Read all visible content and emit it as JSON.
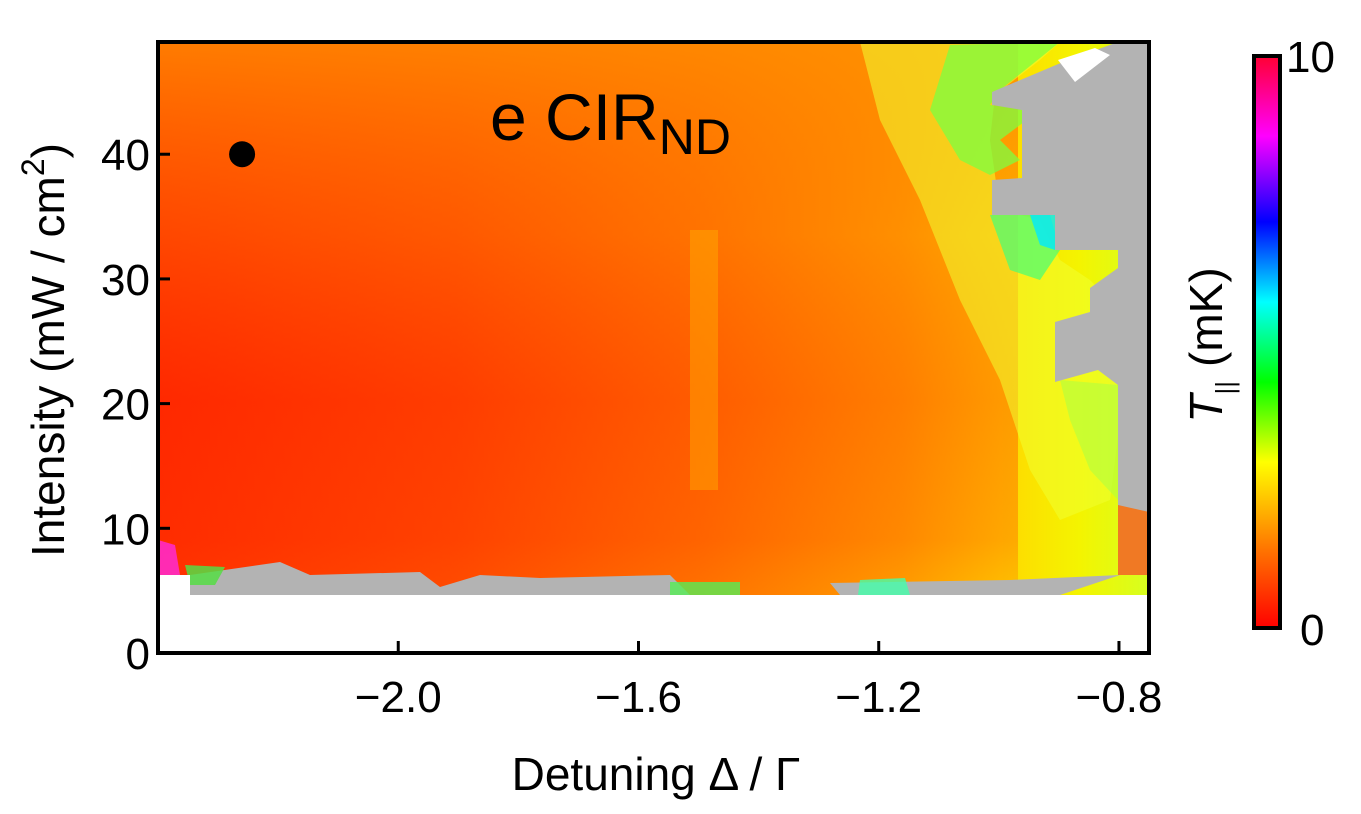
{
  "chart_data": {
    "type": "heatmap",
    "panel_label": {
      "prefix": "e CIR",
      "subscript": "ND"
    },
    "xlabel": "Detuning Δ / Γ",
    "ylabel": {
      "main": "Intensity (mW / cm",
      "superscript": "2",
      "close": ")"
    },
    "xlim": [
      -2.4,
      -0.75
    ],
    "ylim": [
      0,
      49
    ],
    "x_ticks": [
      -2.0,
      -1.6,
      -1.2,
      -0.8
    ],
    "x_tick_labels": [
      "−2.0",
      "−1.6",
      "−1.2",
      "−0.8"
    ],
    "y_ticks": [
      0,
      10,
      20,
      30,
      40
    ],
    "y_tick_labels": [
      "0",
      "10",
      "20",
      "30",
      "40"
    ],
    "marker": {
      "x": -2.26,
      "y": 40
    },
    "colorbar": {
      "label_symbol": "T",
      "label_subscript": "||",
      "label_unit": "(mK)",
      "min": 0,
      "max": 10,
      "min_label": "0",
      "max_label": "10",
      "colors": [
        "#ff0000",
        "#ff7700",
        "#ffff00",
        "#00ff00",
        "#00ffff",
        "#0000ff",
        "#ff00ff",
        "#ff0000"
      ]
    },
    "no_data_color": "#b3b3b3",
    "colorscale": "temperature 0–10 mK (red→orange→yellow→green→cyan→blue→magenta)",
    "description": "Color map of parallel temperature versus detuning and intensity; temperatures lowest (red, ~0–1 mK) at large negative detuning and low-moderate intensity, rising through orange/yellow to green/cyan near detuning −0.9; grey marks invalid data near −0.8 and along bottom edge near 5 mW/cm2; white below ~5 mW/cm2 (no measurement)."
  }
}
